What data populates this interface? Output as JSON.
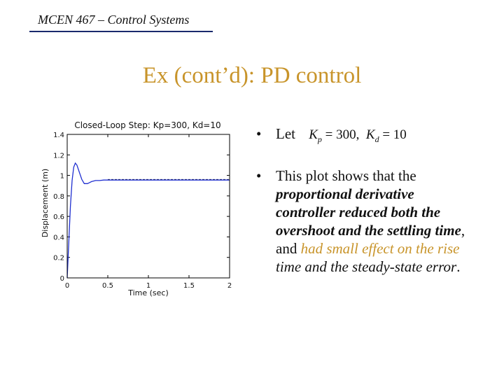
{
  "header": {
    "course": "MCEN 467 – Control Systems"
  },
  "slide": {
    "title": "Ex (cont’d): PD control"
  },
  "colors": {
    "accent": "#c8942a",
    "rule": "#1a2a6c",
    "series": "#1f2fd0"
  },
  "bullets": {
    "let": {
      "label": "Let",
      "kp_sym": "K",
      "kp_sub": "p",
      "kp_val": "= 300,",
      "kd_sym": "K",
      "kd_sub": "d",
      "kd_val": "= 10"
    },
    "plot": {
      "t1": "This plot shows that the",
      "t2": "proportional derivative controller reduced both the overshoot and the settling time",
      "t3": ", and ",
      "t4": "had small effect on the rise",
      "t5": "time and the steady-state error",
      "t6": "."
    }
  },
  "chart_data": {
    "type": "line",
    "title": "Closed-Loop Step: Kp=300, Kd=10",
    "xlabel": "Time (sec)",
    "ylabel": "Displacement (m)",
    "xlim": [
      0,
      2
    ],
    "ylim": [
      0,
      1.4
    ],
    "xticks": [
      "0",
      "0.5",
      "1",
      "1.5",
      "2"
    ],
    "yticks": [
      "0",
      "0.2",
      "0.4",
      "0.6",
      "0.8",
      "1",
      "1.2",
      "1.4"
    ],
    "xtick_values": [
      0,
      0.5,
      1,
      1.5,
      2
    ],
    "ytick_values": [
      0,
      0.2,
      0.4,
      0.6,
      0.8,
      1,
      1.2,
      1.4
    ],
    "series": [
      {
        "x": [
          0,
          0.02,
          0.04,
          0.06,
          0.08,
          0.1,
          0.12,
          0.15,
          0.18,
          0.21,
          0.25,
          0.3,
          0.35,
          0.4,
          0.45,
          0.5,
          0.6,
          2.0
        ],
        "values": [
          0,
          0.35,
          0.7,
          0.95,
          1.08,
          1.12,
          1.1,
          1.03,
          0.96,
          0.92,
          0.92,
          0.94,
          0.95,
          0.95,
          0.955,
          0.955,
          0.955,
          0.955
        ]
      }
    ],
    "reference": {
      "x": [
        0.5,
        2.0
      ],
      "value": 0.96,
      "style": "dashed"
    }
  }
}
